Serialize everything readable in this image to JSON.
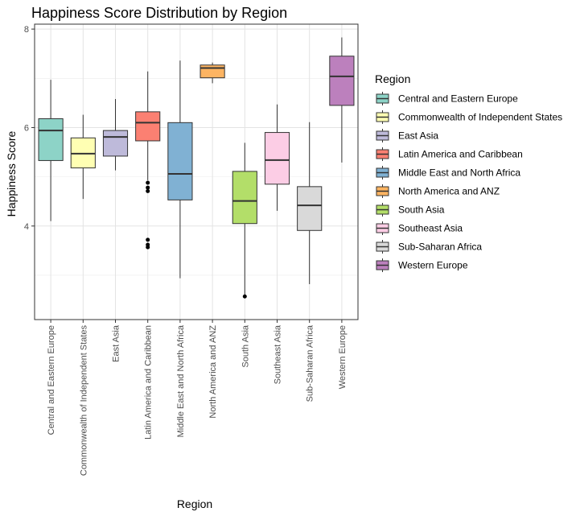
{
  "chart_data": {
    "type": "box",
    "title": "Happiness Score Distribution by Region",
    "xlabel": "Region",
    "ylabel": "Happiness Score",
    "ylim": [
      2.1,
      8.1
    ],
    "yticks": [
      4,
      6,
      8
    ],
    "grid": true,
    "legend": {
      "title": "Region",
      "position": "right"
    },
    "categories": [
      "Central and Eastern Europe",
      "Commonwealth of Independent States",
      "East Asia",
      "Latin America and Caribbean",
      "Middle East and North Africa",
      "North America and ANZ",
      "South Asia",
      "Southeast Asia",
      "Sub-Saharan Africa",
      "Western Europe"
    ],
    "colors": [
      "#8DD3C7",
      "#FFFFB3",
      "#BEBADA",
      "#FB8072",
      "#80B1D3",
      "#FDB462",
      "#B3DE69",
      "#FCCDE5",
      "#D9D9D9",
      "#BC80BD"
    ],
    "boxes": [
      {
        "min": 4.1,
        "q1": 5.33,
        "median": 5.94,
        "q3": 6.18,
        "max": 6.97,
        "outliers": []
      },
      {
        "min": 4.55,
        "q1": 5.18,
        "median": 5.47,
        "q3": 5.79,
        "max": 6.26,
        "outliers": []
      },
      {
        "min": 5.13,
        "q1": 5.42,
        "median": 5.81,
        "q3": 5.94,
        "max": 6.58,
        "outliers": []
      },
      {
        "min": 4.93,
        "q1": 5.73,
        "median": 6.1,
        "q3": 6.32,
        "max": 7.14,
        "outliers": [
          4.88,
          4.78,
          4.71,
          3.72,
          3.62,
          3.57
        ]
      },
      {
        "min": 2.94,
        "q1": 4.53,
        "median": 5.06,
        "q3": 6.1,
        "max": 7.36,
        "outliers": []
      },
      {
        "min": 6.9,
        "q1": 7.01,
        "median": 7.21,
        "q3": 7.27,
        "max": 7.32,
        "outliers": []
      },
      {
        "min": 2.57,
        "q1": 4.05,
        "median": 4.51,
        "q3": 5.11,
        "max": 5.69,
        "outliers": [
          2.57
        ]
      },
      {
        "min": 4.31,
        "q1": 4.85,
        "median": 5.34,
        "q3": 5.9,
        "max": 6.47,
        "outliers": []
      },
      {
        "min": 2.82,
        "q1": 3.91,
        "median": 4.42,
        "q3": 4.8,
        "max": 6.11,
        "outliers": []
      },
      {
        "min": 5.29,
        "q1": 6.45,
        "median": 7.04,
        "q3": 7.45,
        "max": 7.83,
        "outliers": []
      }
    ]
  }
}
